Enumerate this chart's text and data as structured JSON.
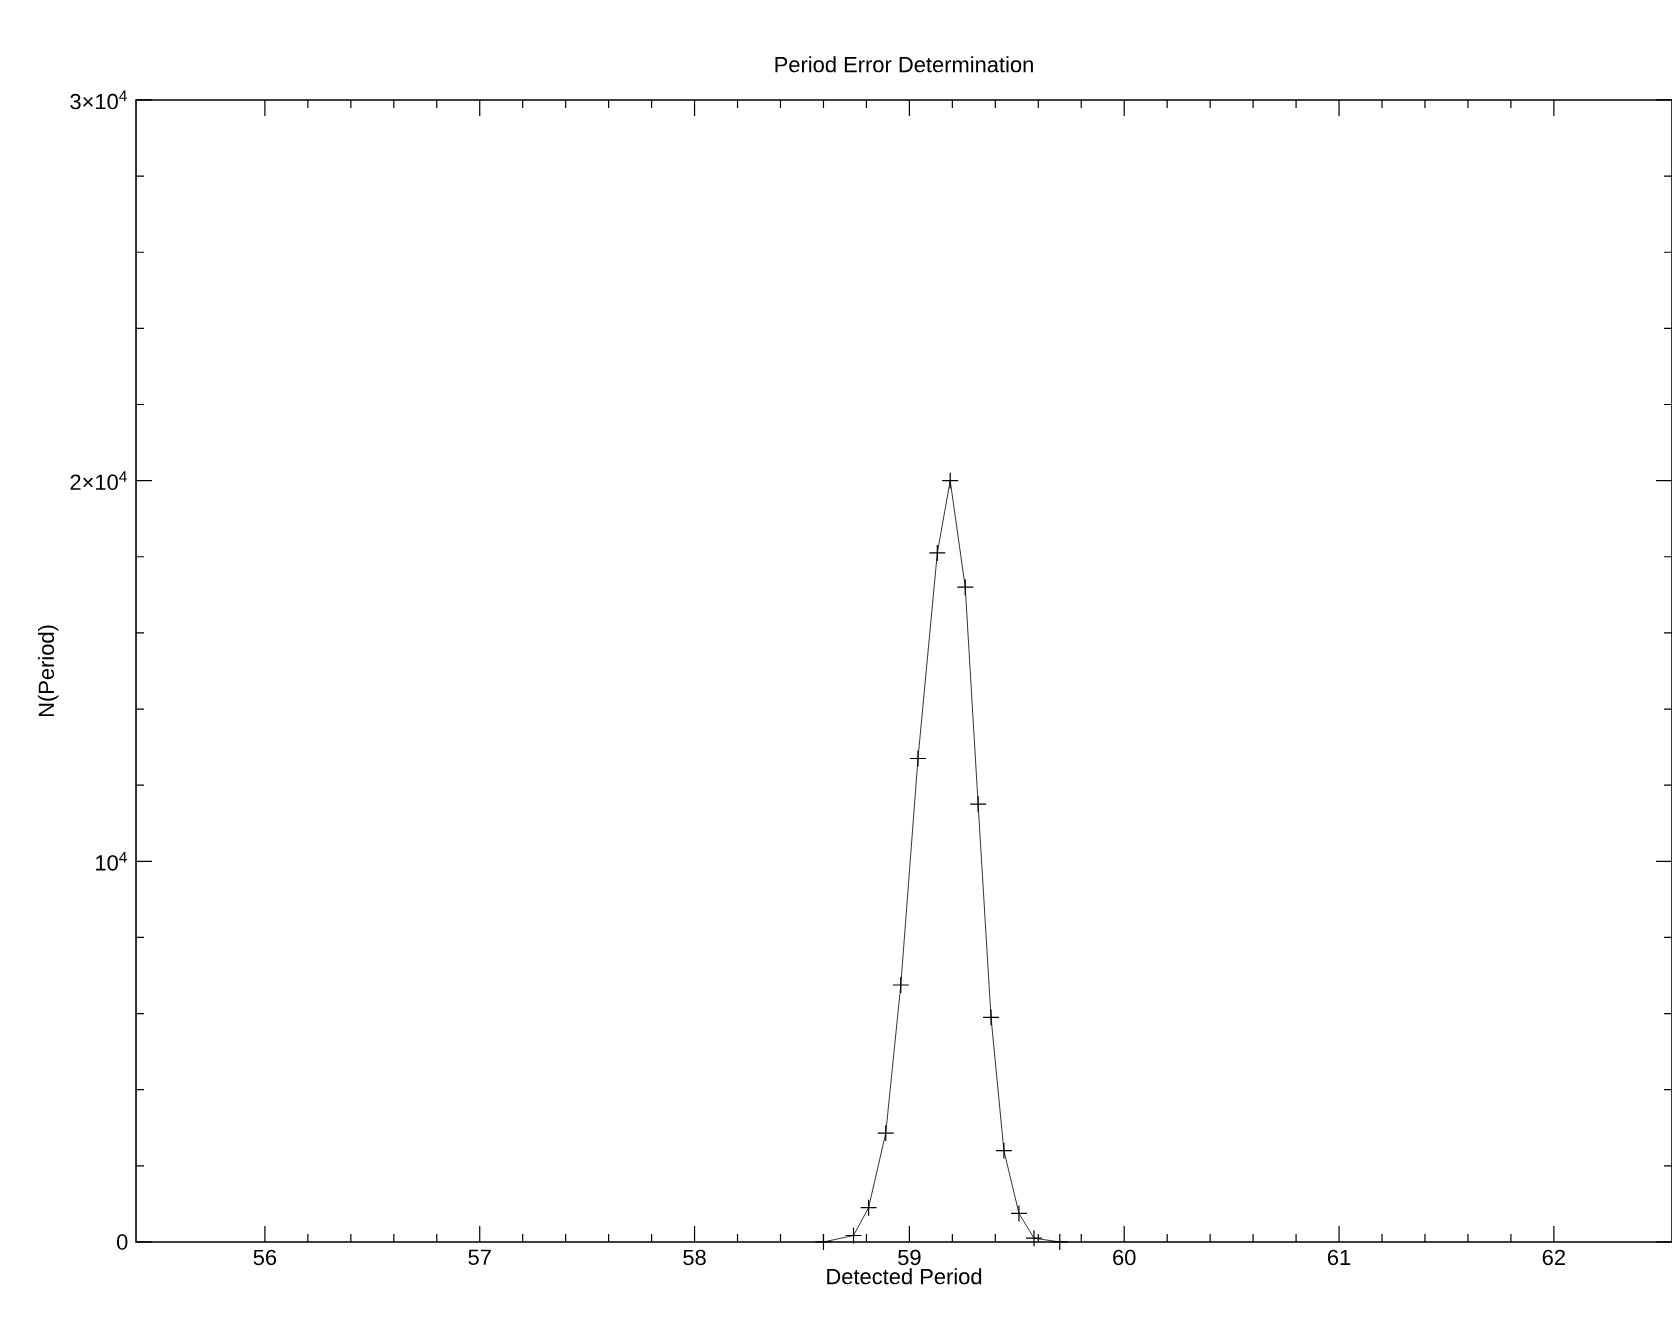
{
  "chart_data": {
    "type": "line",
    "title": "Period Error Determination",
    "xlabel": "Detected Period",
    "ylabel": "N(Period)",
    "x": [
      58.6,
      58.74,
      58.81,
      58.89,
      58.96,
      59.04,
      59.13,
      59.19,
      59.26,
      59.32,
      59.38,
      59.44,
      59.51,
      59.58,
      59.7
    ],
    "series": [
      {
        "color": "#000000",
        "values": [
          0,
          170,
          900,
          2860,
          6750,
          12700,
          18100,
          20000,
          17200,
          11500,
          5900,
          2400,
          750,
          100,
          0
        ]
      }
    ],
    "xlim": [
      55.4,
      62.55
    ],
    "xticks": [
      56,
      57,
      58,
      59,
      60,
      61,
      62
    ],
    "ylim": [
      0,
      30000
    ],
    "yticks": [
      0,
      {
        "value": 10000,
        "label": "10$^{4}$"
      },
      {
        "value": 20000,
        "label": "2×10$^{4}$"
      },
      {
        "value": 30000,
        "label": "3×10$^{4}$"
      }
    ],
    "grid": false,
    "marker": "cross",
    "line_style": "solid"
  }
}
